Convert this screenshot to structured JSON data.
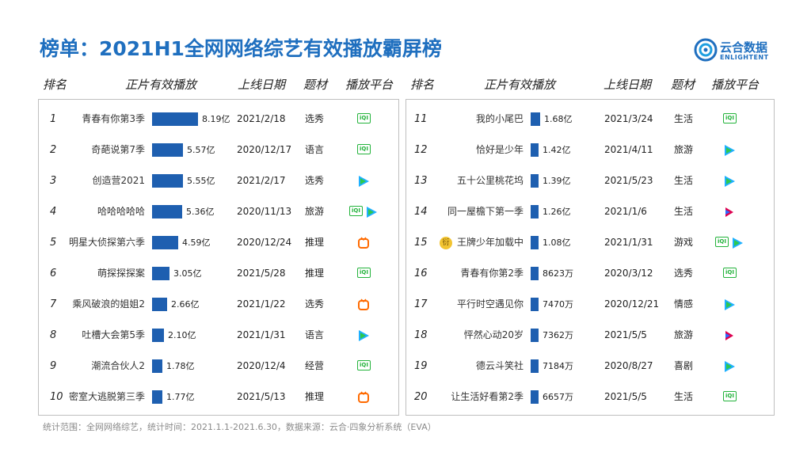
{
  "title": "榜单：2021H1全网网络综艺有效播放霸屏榜",
  "logo": {
    "cn": "云合数据",
    "en": "ENLIGHTENT"
  },
  "headers": {
    "rank": "排名",
    "plays": "正片有效播放",
    "date": "上线日期",
    "genre": "题材",
    "platform": "播放平台"
  },
  "colors": {
    "title": "#1f6fbf",
    "bar": "#1e5fb0",
    "iqiyi": "#23b33b",
    "tencent": "#1fb0ff",
    "mango": "#ff6a00",
    "youku": "#e0004e"
  },
  "footer": "统计范围：全网网络综艺，统计时间：2021.1.1-2021.6.30，数据来源：云合·四象分析系统（EVA）",
  "chart_data": {
    "type": "bar",
    "unit_note": "亿 = 100,000,000; 万 = 10,000",
    "rows": [
      {
        "rank": "1",
        "name": "青春有你第3季",
        "label": "8.19亿",
        "value": 8.19,
        "date": "2021/2/18",
        "genre": "选秀",
        "platforms": [
          "iqiyi"
        ]
      },
      {
        "rank": "2",
        "name": "奇葩说第7季",
        "label": "5.57亿",
        "value": 5.57,
        "date": "2020/12/17",
        "genre": "语言",
        "platforms": [
          "iqiyi"
        ]
      },
      {
        "rank": "3",
        "name": "创造营2021",
        "label": "5.55亿",
        "value": 5.55,
        "date": "2021/2/17",
        "genre": "选秀",
        "platforms": [
          "tencent"
        ]
      },
      {
        "rank": "4",
        "name": "哈哈哈哈哈",
        "label": "5.36亿",
        "value": 5.36,
        "date": "2020/11/13",
        "genre": "旅游",
        "platforms": [
          "iqiyi",
          "tencent"
        ]
      },
      {
        "rank": "5",
        "name": "明星大侦探第六季",
        "label": "4.59亿",
        "value": 4.59,
        "date": "2020/12/24",
        "genre": "推理",
        "platforms": [
          "mango"
        ]
      },
      {
        "rank": "6",
        "name": "萌探探探案",
        "label": "3.05亿",
        "value": 3.05,
        "date": "2021/5/28",
        "genre": "推理",
        "platforms": [
          "iqiyi"
        ]
      },
      {
        "rank": "7",
        "name": "乘风破浪的姐姐2",
        "label": "2.66亿",
        "value": 2.66,
        "date": "2021/1/22",
        "genre": "选秀",
        "platforms": [
          "mango"
        ]
      },
      {
        "rank": "8",
        "name": "吐槽大会第5季",
        "label": "2.10亿",
        "value": 2.1,
        "date": "2021/1/31",
        "genre": "语言",
        "platforms": [
          "tencent"
        ]
      },
      {
        "rank": "9",
        "name": "潮流合伙人2",
        "label": "1.78亿",
        "value": 1.78,
        "date": "2020/12/4",
        "genre": "经营",
        "platforms": [
          "iqiyi"
        ]
      },
      {
        "rank": "10",
        "name": "密室大逃脱第三季",
        "label": "1.77亿",
        "value": 1.77,
        "date": "2021/5/13",
        "genre": "推理",
        "platforms": [
          "mango"
        ]
      },
      {
        "rank": "11",
        "name": "我的小尾巴",
        "label": "1.68亿",
        "value": 1.68,
        "date": "2021/3/24",
        "genre": "生活",
        "platforms": [
          "iqiyi"
        ]
      },
      {
        "rank": "12",
        "name": "恰好是少年",
        "label": "1.42亿",
        "value": 1.42,
        "date": "2021/4/11",
        "genre": "旅游",
        "platforms": [
          "tencent"
        ]
      },
      {
        "rank": "13",
        "name": "五十公里桃花坞",
        "label": "1.39亿",
        "value": 1.39,
        "date": "2021/5/23",
        "genre": "生活",
        "platforms": [
          "tencent"
        ]
      },
      {
        "rank": "14",
        "name": "同一屋檐下第一季",
        "label": "1.26亿",
        "value": 1.26,
        "date": "2021/1/6",
        "genre": "生活",
        "platforms": [
          "youku"
        ]
      },
      {
        "rank": "15",
        "name": "王牌少年加载中",
        "label": "1.08亿",
        "value": 1.08,
        "date": "2021/1/31",
        "genre": "游戏",
        "platforms": [
          "iqiyi",
          "tencent"
        ],
        "badge": "衍"
      },
      {
        "rank": "16",
        "name": "青春有你第2季",
        "label": "8623万",
        "value": 0.8623,
        "date": "2020/3/12",
        "genre": "选秀",
        "platforms": [
          "iqiyi"
        ]
      },
      {
        "rank": "17",
        "name": "平行时空遇见你",
        "label": "7470万",
        "value": 0.747,
        "date": "2020/12/21",
        "genre": "情感",
        "platforms": [
          "tencent"
        ]
      },
      {
        "rank": "18",
        "name": "怦然心动20岁",
        "label": "7362万",
        "value": 0.7362,
        "date": "2021/5/5",
        "genre": "旅游",
        "platforms": [
          "youku"
        ]
      },
      {
        "rank": "19",
        "name": "德云斗笑社",
        "label": "7184万",
        "value": 0.7184,
        "date": "2020/8/27",
        "genre": "喜剧",
        "platforms": [
          "tencent"
        ]
      },
      {
        "rank": "20",
        "name": "让生活好看第2季",
        "label": "6657万",
        "value": 0.6657,
        "date": "2021/5/5",
        "genre": "生活",
        "platforms": [
          "iqiyi"
        ]
      }
    ]
  }
}
